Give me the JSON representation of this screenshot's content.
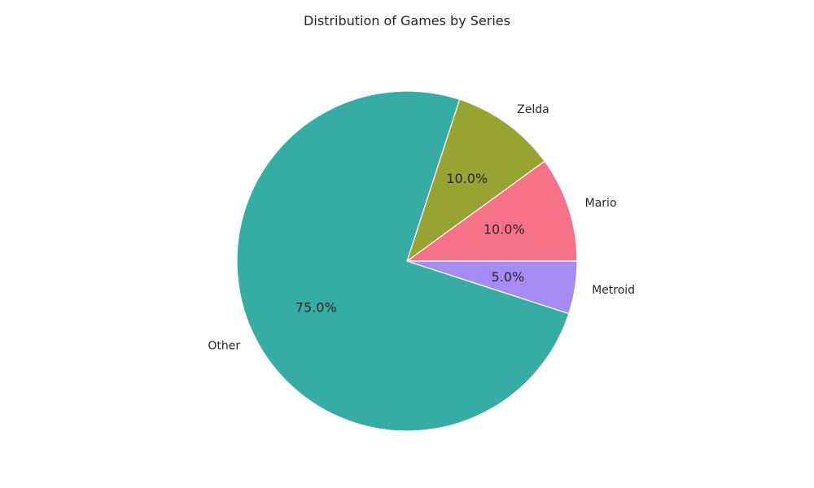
{
  "chart_data": {
    "type": "pie",
    "title": "Distribution of Games by Series",
    "slices": [
      {
        "label": "Mario",
        "value": 10.0,
        "pct_label": "10.0%",
        "color": "#f77189"
      },
      {
        "label": "Zelda",
        "value": 10.0,
        "pct_label": "10.0%",
        "color": "#97a431"
      },
      {
        "label": "Other",
        "value": 75.0,
        "pct_label": "75.0%",
        "color": "#36ada4"
      },
      {
        "label": "Metroid",
        "value": 5.0,
        "pct_label": "5.0%",
        "color": "#a48cf4"
      }
    ],
    "start_angle_deg": 0,
    "direction": "counterclockwise",
    "edge_color": "#ffffff"
  }
}
